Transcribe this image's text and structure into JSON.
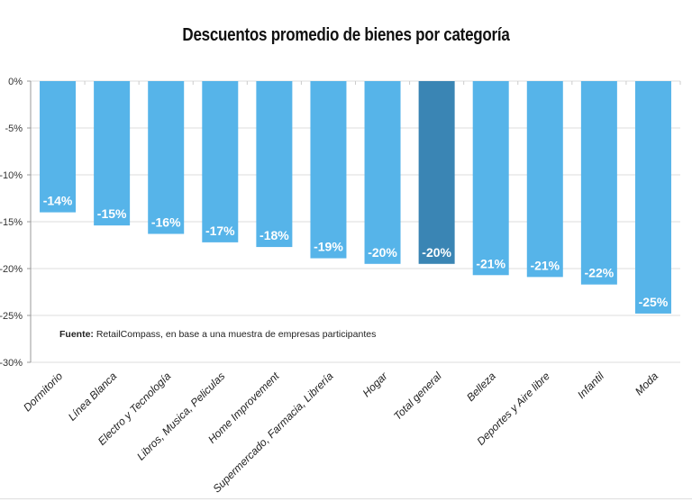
{
  "chart_data": {
    "type": "bar",
    "title": "Descuentos promedio de bienes por categoría",
    "categories": [
      "Dormitorio",
      "Línea Blanca",
      "Electro y Tecnología",
      "Libros, Musica, Peliculas",
      "Home Improvement",
      "Supermercado, Farmacia, Librería",
      "Hogar",
      "Total general",
      "Belleza",
      "Deportes y Aire libre",
      "Infantil",
      "Moda"
    ],
    "values": [
      -14.0,
      -15.4,
      -16.3,
      -17.2,
      -17.7,
      -18.9,
      -19.5,
      -19.5,
      -20.7,
      -20.9,
      -21.7,
      -24.8
    ],
    "data_labels": [
      "-14%",
      "-15%",
      "-16%",
      "-17%",
      "-18%",
      "-19%",
      "-20%",
      "-20%",
      "-21%",
      "-21%",
      "-22%",
      "-25%"
    ],
    "yticks": [
      "0%",
      "-5%",
      "-10%",
      "-15%",
      "-20%",
      "-25%",
      "-30%"
    ],
    "ylim": [
      -30,
      0
    ],
    "xlabel": "",
    "ylabel": "",
    "grid": true,
    "colors": {
      "bar": "#56b4e9",
      "highlight": "#3a85b4",
      "highlight_category": "Total general"
    },
    "source_label": "Fuente:",
    "source_text": " RetailCompass, en base a una muestra de empresas participantes"
  }
}
